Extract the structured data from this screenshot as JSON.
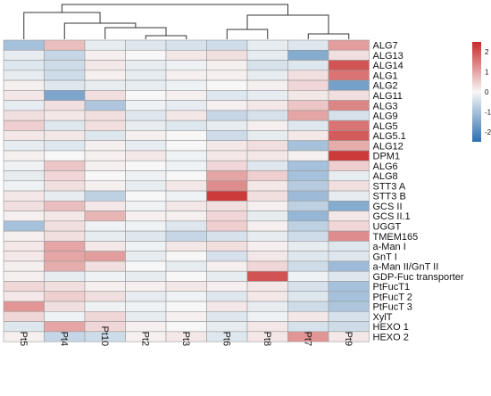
{
  "chart_data": {
    "type": "heatmap",
    "columns": [
      "Pt5",
      "Pt4",
      "Pt10",
      "Pt2",
      "Pt3",
      "Pt6",
      "Pt8",
      "Pt7",
      "Pt9"
    ],
    "rows": [
      "ALG7",
      "ALG13",
      "ALG14",
      "ALG1",
      "ALG2",
      "ALG11",
      "ALG3",
      "ALG9",
      "ALG5",
      "ALG5.1",
      "ALG12",
      "DPM1",
      "ALG6",
      "ALG8",
      "STT3 A",
      "STT3 B",
      "GCS II",
      "GCS II.1",
      "UGGT",
      "TMEM165",
      "a-Man I",
      "GnT I",
      "a-Man II/GnT II",
      "GDP-Fuc transporter",
      "PtFucT1",
      "PtFucT 2",
      "PtFucT 3",
      "XylT",
      "HEXO 1",
      "HEXO 2"
    ],
    "values": [
      [
        -1.0,
        0.7,
        -0.2,
        -0.3,
        -0.4,
        -0.5,
        -0.2,
        -0.3,
        1.1
      ],
      [
        -0.2,
        -0.6,
        0.1,
        0.0,
        0.2,
        0.3,
        -0.2,
        -1.4,
        0.3
      ],
      [
        -0.3,
        -0.5,
        0.2,
        -0.2,
        -0.1,
        0.1,
        -0.4,
        -0.3,
        2.0
      ],
      [
        -0.2,
        -0.5,
        0.1,
        -0.2,
        0.1,
        0.1,
        -0.2,
        0.3,
        1.6
      ],
      [
        0.1,
        -0.3,
        -0.2,
        -0.2,
        -0.1,
        0.0,
        0.1,
        0.4,
        -1.6
      ],
      [
        0.2,
        -1.5,
        0.3,
        0.0,
        0.1,
        -0.3,
        -0.2,
        0.2,
        0.3
      ],
      [
        -0.2,
        0.3,
        -0.9,
        -0.1,
        -0.2,
        0.1,
        0.2,
        0.6,
        1.4
      ],
      [
        0.3,
        0.2,
        0.3,
        -0.3,
        0.2,
        -0.6,
        -0.4,
        1.0,
        -0.4
      ],
      [
        0.5,
        -0.3,
        0.3,
        -0.2,
        -0.3,
        -0.2,
        0.1,
        -0.3,
        1.6
      ],
      [
        0.2,
        0.2,
        -0.3,
        0.1,
        0.0,
        -0.5,
        -0.2,
        0.2,
        1.9
      ],
      [
        -0.2,
        -0.3,
        0.1,
        -0.2,
        0.0,
        0.2,
        0.3,
        -1.0,
        0.9
      ],
      [
        0.1,
        0.0,
        0.1,
        0.2,
        -0.1,
        0.2,
        0.2,
        0.1,
        2.3
      ],
      [
        -0.1,
        0.6,
        0.1,
        0.0,
        -0.1,
        0.4,
        -0.3,
        -1.0,
        0.5
      ],
      [
        -0.2,
        0.4,
        0.0,
        -0.1,
        0.0,
        1.0,
        0.5,
        -1.0,
        -0.2
      ],
      [
        -0.1,
        0.3,
        0.1,
        -0.2,
        0.2,
        1.3,
        0.2,
        -0.8,
        0.3
      ],
      [
        0.2,
        -0.2,
        -0.7,
        0.0,
        -0.1,
        2.3,
        0.3,
        -1.1,
        -0.2
      ],
      [
        0.3,
        0.7,
        0.2,
        -0.1,
        0.2,
        0.3,
        0.1,
        -0.7,
        -1.4
      ],
      [
        0.1,
        0.2,
        0.8,
        0.1,
        0.1,
        0.4,
        -0.2,
        -1.2,
        0.2
      ],
      [
        -1.0,
        0.3,
        -0.1,
        -0.1,
        -0.3,
        0.5,
        0.1,
        -0.7,
        0.4
      ],
      [
        0.1,
        0.3,
        -0.2,
        -0.3,
        -0.6,
        -0.4,
        -0.2,
        -0.5,
        1.3
      ],
      [
        0.2,
        1.0,
        0.2,
        -0.1,
        0.2,
        0.3,
        0.1,
        -0.2,
        -0.3
      ],
      [
        0.2,
        1.0,
        1.1,
        -0.2,
        0.0,
        -0.4,
        0.2,
        -0.3,
        -0.3
      ],
      [
        0.1,
        0.9,
        0.3,
        0.0,
        -0.2,
        0.1,
        0.4,
        -0.5,
        -1.1
      ],
      [
        0.1,
        -0.2,
        -0.1,
        -0.2,
        0.0,
        -0.2,
        2.0,
        -0.1,
        -0.3
      ],
      [
        0.4,
        0.3,
        0.1,
        0.1,
        0.2,
        0.1,
        0.2,
        -0.4,
        -1.0
      ],
      [
        0.2,
        0.5,
        0.3,
        -0.2,
        -0.1,
        -0.3,
        0.2,
        -0.3,
        -1.0
      ],
      [
        1.2,
        0.3,
        -0.1,
        -0.1,
        0.0,
        0.2,
        -0.2,
        -0.5,
        -0.9
      ],
      [
        0.4,
        -0.1,
        0.4,
        -0.2,
        0.1,
        -0.3,
        -0.1,
        0.2,
        -0.4
      ],
      [
        -0.3,
        1.0,
        0.4,
        0.1,
        0.0,
        -0.2,
        0.2,
        -0.4,
        -0.5
      ],
      [
        0.1,
        -0.6,
        -0.5,
        0.1,
        0.2,
        -0.3,
        0.2,
        1.2,
        0.2
      ]
    ],
    "color_scale": {
      "range": [
        -2.5,
        2.5
      ],
      "ticks": [
        2,
        1,
        0,
        -1,
        -2
      ],
      "low_color": "#2b6fb0",
      "mid_color": "#f7f7f7",
      "high_color": "#c92a2a"
    },
    "cell_border_color": "#9a9a9a",
    "column_clusters": [
      [
        "Pt5",
        "Pt4",
        "Pt10",
        "Pt2",
        "Pt3"
      ],
      [
        "Pt6",
        "Pt8",
        "Pt7",
        "Pt9"
      ]
    ]
  }
}
